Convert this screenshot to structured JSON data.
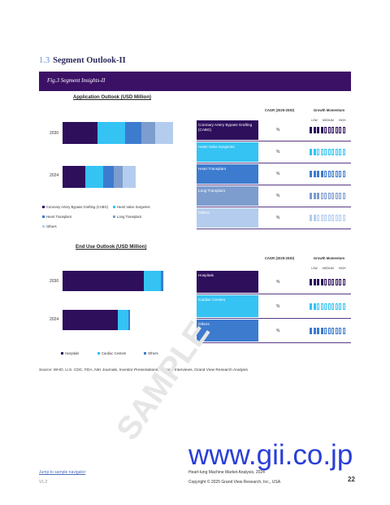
{
  "section": {
    "number": "1.3",
    "title": "Segment Outlook-II"
  },
  "figure": {
    "title": "Fig.3  Segment Insights-II"
  },
  "colors": {
    "banner": "#3b1166",
    "dark_purple": "#2d0f5c",
    "cyan": "#34c3f3",
    "blue": "#3d7bcf",
    "gray_blue": "#7d9dcf",
    "light_blue": "#b4cdee",
    "momentum_empty": "#ffffff"
  },
  "application_chart": {
    "title": "Application Outlook (USD Million)",
    "categories": [
      "2030",
      "2024"
    ],
    "series": [
      {
        "name": "Coronary Artery Bypass Grafting (CABG)",
        "color": "#2d0f5c",
        "values": [
          43,
          28
        ]
      },
      {
        "name": "Heart Valve Surgeries",
        "color": "#34c3f3",
        "values": [
          34,
          22
        ]
      },
      {
        "name": "Heart Transplant",
        "color": "#3d7bcf",
        "values": [
          20,
          13
        ]
      },
      {
        "name": "Long Transplant",
        "color": "#7d9dcf",
        "values": [
          17,
          11
        ]
      },
      {
        "name": "Others",
        "color": "#b4cdee",
        "values": [
          22,
          16
        ]
      }
    ]
  },
  "application_table": {
    "cagr_header": "CAGR (2025-2030)",
    "momentum_header": "Growth Momentum",
    "momentum_scale": [
      "LOW",
      "MEDIUM",
      "HIGH"
    ],
    "rows": [
      {
        "label": "Coronary Artery Bypass Grafting (CABG)",
        "color": "#2d0f5c",
        "cagr": "%",
        "level": 4
      },
      {
        "label": "Heart Valve Surgeries",
        "color": "#34c3f3",
        "cagr": "%",
        "level": 2
      },
      {
        "label": "Heart Transplant",
        "color": "#3d7bcf",
        "cagr": "%",
        "level": 4
      },
      {
        "label": "Long Transplant",
        "color": "#7d9dcf",
        "cagr": "%",
        "level": 3
      },
      {
        "label": "Others",
        "color": "#b4cdee",
        "cagr": "%",
        "level": 2
      }
    ]
  },
  "enduse_chart": {
    "title": "End Use Outlook (USD Million)",
    "categories": [
      "2030",
      "2024"
    ],
    "series": [
      {
        "name": "Hospitals",
        "color": "#2d0f5c",
        "values": [
          100,
          68
        ]
      },
      {
        "name": "Cardiac Centers",
        "color": "#34c3f3",
        "values": [
          21,
          13
        ]
      },
      {
        "name": "Others",
        "color": "#3d7bcf",
        "values": [
          3,
          2
        ]
      }
    ]
  },
  "enduse_table": {
    "cagr_header": "CAGR (2025-2030)",
    "momentum_header": "Growth Momentum",
    "momentum_scale": [
      "LOW",
      "MEDIUM",
      "HIGH"
    ],
    "rows": [
      {
        "label": "Hospitals",
        "color": "#2d0f5c",
        "cagr": "%",
        "level": 4
      },
      {
        "label": "Cardiac Centers",
        "color": "#34c3f3",
        "cagr": "%",
        "level": 2
      },
      {
        "label": "Others",
        "color": "#3d7bcf",
        "cagr": "%",
        "level": 4
      }
    ]
  },
  "source": "Source: WHO, U.S. CDC, FDA, NIH Journals, Investor Presentations, Primary Interviews, Grand View Research Analysis",
  "watermark": "SAMPLE",
  "brand": "www.gii.co.jp",
  "footer": {
    "link": "Jump to sample navigator",
    "version": "V1.2",
    "report": "Heart-lung Machine Market Analysis, 2024",
    "copyright": "Copyright © 2025 Grand View Research, Inc., USA",
    "page": "22"
  }
}
